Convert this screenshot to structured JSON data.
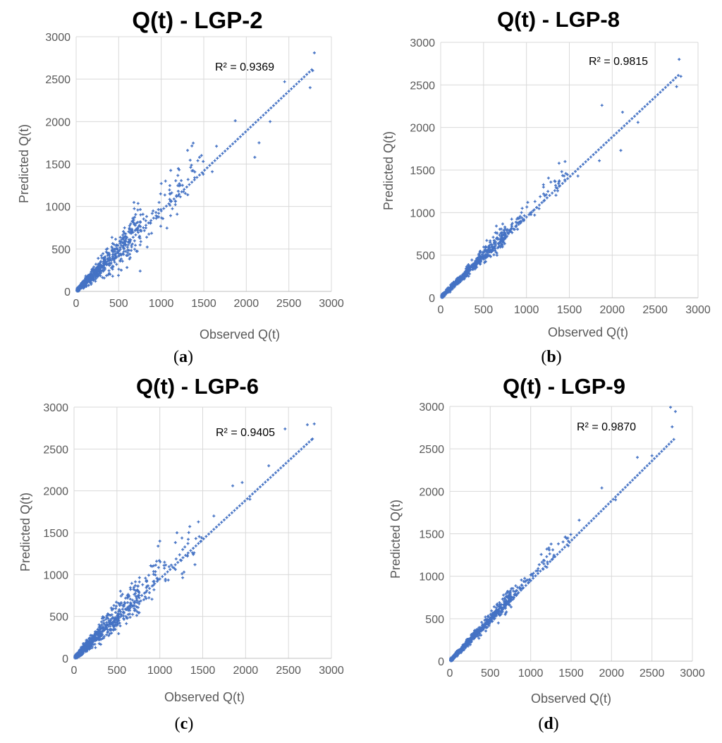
{
  "captions": [
    {
      "open": "(",
      "letter": "a",
      "close": ")"
    },
    {
      "open": "(",
      "letter": "b",
      "close": ")"
    },
    {
      "open": "(",
      "letter": "c",
      "close": ")"
    },
    {
      "open": "(",
      "letter": "d",
      "close": ")"
    }
  ],
  "chart_data": [
    {
      "type": "scatter",
      "title": "Q(t) - LGP-2",
      "xlabel": "Observed Q(t)",
      "ylabel": "Predicted Q(t)",
      "xlim": [
        0,
        3000
      ],
      "ylim": [
        0,
        3000
      ],
      "xticks": [
        "0",
        "500",
        "1000",
        "1500",
        "2000",
        "2500",
        "3000"
      ],
      "yticks": [
        "0",
        "500",
        "1000",
        "1500",
        "2000",
        "2500",
        "3000"
      ],
      "grid": true,
      "annotation": "R² = 0.9369",
      "marker_color": "#4472C4",
      "spread": 0.28,
      "points": [
        [
          2800,
          2810
        ],
        [
          2780,
          2600
        ],
        [
          2750,
          2400
        ],
        [
          2450,
          2470
        ],
        [
          2280,
          2000
        ],
        [
          2150,
          1750
        ],
        [
          2100,
          1580
        ],
        [
          1870,
          2010
        ],
        [
          1650,
          1710
        ],
        [
          1600,
          1410
        ],
        [
          1450,
          1580
        ],
        [
          1430,
          1540
        ],
        [
          1250,
          1250
        ],
        [
          1200,
          1180
        ],
        [
          1100,
          1150
        ],
        [
          1050,
          1300
        ],
        [
          1000,
          1270
        ]
      ]
    },
    {
      "type": "scatter",
      "title": "Q(t) - LGP-8",
      "xlabel": "Observed Q(t)",
      "ylabel": "Predicted Q(t)",
      "xlim": [
        0,
        3000
      ],
      "ylim": [
        0,
        3000
      ],
      "xticks": [
        "0",
        "500",
        "1000",
        "1500",
        "2000",
        "2500",
        "3000"
      ],
      "yticks": [
        "0",
        "500",
        "1000",
        "1500",
        "2000",
        "2500",
        "3000"
      ],
      "grid": true,
      "annotation": "R² = 0.9815",
      "marker_color": "#4472C4",
      "spread": 0.12,
      "points": [
        [
          2780,
          2800
        ],
        [
          2800,
          2600
        ],
        [
          2750,
          2480
        ],
        [
          2300,
          2060
        ],
        [
          2120,
          2180
        ],
        [
          2100,
          1730
        ],
        [
          1880,
          2260
        ],
        [
          1850,
          1610
        ],
        [
          1600,
          1430
        ],
        [
          1450,
          1600
        ],
        [
          1380,
          1580
        ],
        [
          1200,
          1220
        ],
        [
          950,
          1050
        ]
      ]
    },
    {
      "type": "scatter",
      "title": "Q(t) - LGP-6",
      "xlabel": "Observed Q(t)",
      "ylabel": "Predicted Q(t)",
      "xlim": [
        0,
        3000
      ],
      "ylim": [
        0,
        3000
      ],
      "xticks": [
        "0",
        "500",
        "1000",
        "1500",
        "2000",
        "2500",
        "3000"
      ],
      "yticks": [
        "0",
        "500",
        "1000",
        "1500",
        "2000",
        "2500",
        "3000"
      ],
      "grid": true,
      "annotation": "R² = 0.9405",
      "marker_color": "#4472C4",
      "spread": 0.26,
      "points": [
        [
          2800,
          2800
        ],
        [
          2720,
          2790
        ],
        [
          2780,
          2620
        ],
        [
          2460,
          2740
        ],
        [
          2270,
          2300
        ],
        [
          2050,
          1900
        ],
        [
          1960,
          2100
        ],
        [
          1850,
          2060
        ],
        [
          1630,
          1700
        ],
        [
          1450,
          1630
        ],
        [
          1420,
          1430
        ],
        [
          1400,
          1260
        ],
        [
          1200,
          1500
        ],
        [
          1000,
          1400
        ],
        [
          980,
          1340
        ]
      ]
    },
    {
      "type": "scatter",
      "title": "Q(t) - LGP-9",
      "xlabel": "Observed Q(t)",
      "ylabel": "Predicted Q(t)",
      "xlim": [
        0,
        3000
      ],
      "ylim": [
        0,
        3000
      ],
      "xticks": [
        "0",
        "500",
        "1000",
        "1500",
        "2000",
        "2500",
        "3000"
      ],
      "yticks": [
        "0",
        "500",
        "1000",
        "1500",
        "2000",
        "2500",
        "3000"
      ],
      "grid": true,
      "annotation": "R² = 0.9870",
      "marker_color": "#4472C4",
      "spread": 0.1,
      "points": [
        [
          2730,
          2990
        ],
        [
          2790,
          2940
        ],
        [
          2750,
          2760
        ],
        [
          2500,
          2420
        ],
        [
          2320,
          2400
        ],
        [
          2050,
          1900
        ],
        [
          1880,
          2040
        ],
        [
          1600,
          1660
        ],
        [
          1460,
          1450
        ],
        [
          1200,
          1320
        ],
        [
          1000,
          950
        ],
        [
          700,
          580
        ],
        [
          600,
          450
        ]
      ]
    }
  ]
}
